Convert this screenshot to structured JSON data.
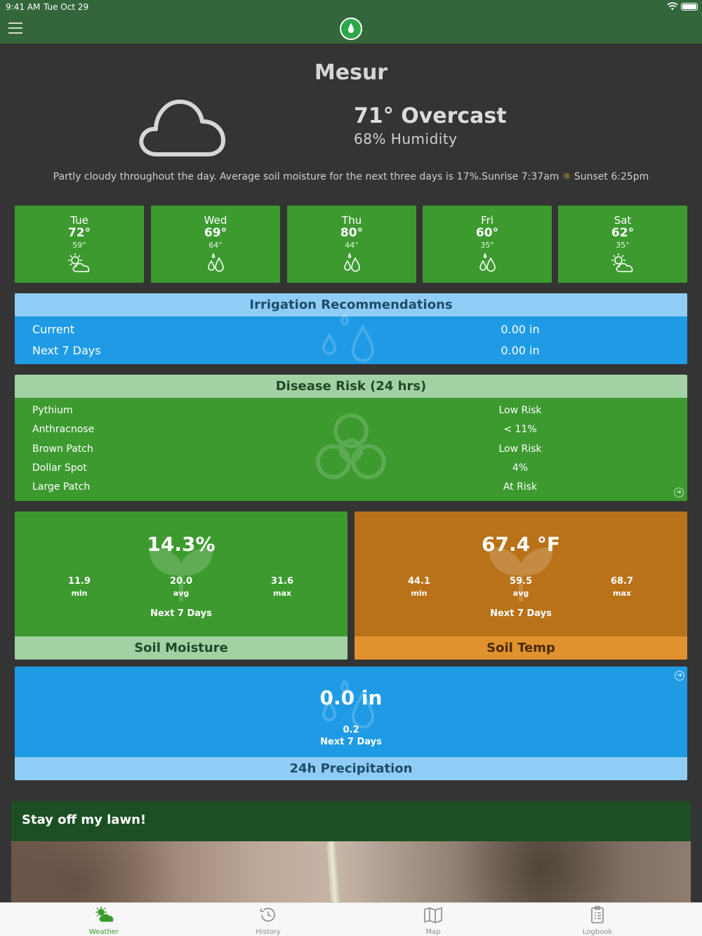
{
  "status": {
    "time": "9:41 AM",
    "date": "Tue Oct 29"
  },
  "colors": {
    "brand": "#33663a",
    "card_green": "#3c9a2f",
    "irrigation_blue": "#1f9be6",
    "soil_temp_orange": "#b97218",
    "soil_temp_footer": "#e0922e"
  },
  "location": "Mesur",
  "current": {
    "temp_condition": "71° Overcast",
    "humidity": "68% Humidity",
    "icon": "cloud-icon"
  },
  "summary": {
    "text": "Partly cloudy throughout the day. Average soil moisture for the next three days is 17%.Sunrise 7:37am",
    "sun_icon": "☼",
    "sunset": "Sunset 6:25pm"
  },
  "forecast": [
    {
      "day": "Tue",
      "high": "72°",
      "low": "59°",
      "icon": "partly-sunny-icon"
    },
    {
      "day": "Wed",
      "high": "69°",
      "low": "64°",
      "icon": "rain-drops-icon"
    },
    {
      "day": "Thu",
      "high": "80°",
      "low": "44°",
      "icon": "rain-drops-icon"
    },
    {
      "day": "Fri",
      "high": "60°",
      "low": "35°",
      "icon": "rain-drops-icon"
    },
    {
      "day": "Sat",
      "high": "62°",
      "low": "35°",
      "icon": "partly-sunny-icon"
    }
  ],
  "irrigation": {
    "title": "Irrigation Recommendations",
    "rows": [
      {
        "label": "Current",
        "value": "0.00 in"
      },
      {
        "label": "Next 7 Days",
        "value": "0.00 in"
      }
    ]
  },
  "disease": {
    "title": "Disease Risk (24 hrs)",
    "rows": [
      {
        "label": "Pythium",
        "value": "Low Risk"
      },
      {
        "label": "Anthracnose",
        "value": "< 11%"
      },
      {
        "label": "Brown Patch",
        "value": "Low Risk"
      },
      {
        "label": "Dollar Spot",
        "value": "4%"
      },
      {
        "label": "Large Patch",
        "value": "At Risk"
      }
    ]
  },
  "soil_moisture": {
    "value": "14.3%",
    "min": "11.9",
    "avg": "20.0",
    "max": "31.6",
    "min_label": "min",
    "avg_label": "avg",
    "max_label": "max",
    "period": "Next 7 Days",
    "title": "Soil Moisture"
  },
  "soil_temp": {
    "value": "67.4 °F",
    "min": "44.1",
    "avg": "59.5",
    "max": "68.7",
    "min_label": "min",
    "avg_label": "avg",
    "max_label": "max",
    "period": "Next 7 Days",
    "title": "Soil Temp"
  },
  "precipitation": {
    "value": "0.0 in",
    "next_value": "0.2",
    "period": "Next 7 Days",
    "title": "24h Precipitation"
  },
  "article": {
    "title": "Stay off my lawn!"
  },
  "tabs": [
    {
      "label": "Weather",
      "icon": "weather-tab-icon",
      "active": true
    },
    {
      "label": "History",
      "icon": "history-icon",
      "active": false
    },
    {
      "label": "Map",
      "icon": "map-icon",
      "active": false
    },
    {
      "label": "Logbook",
      "icon": "logbook-icon",
      "active": false
    }
  ]
}
